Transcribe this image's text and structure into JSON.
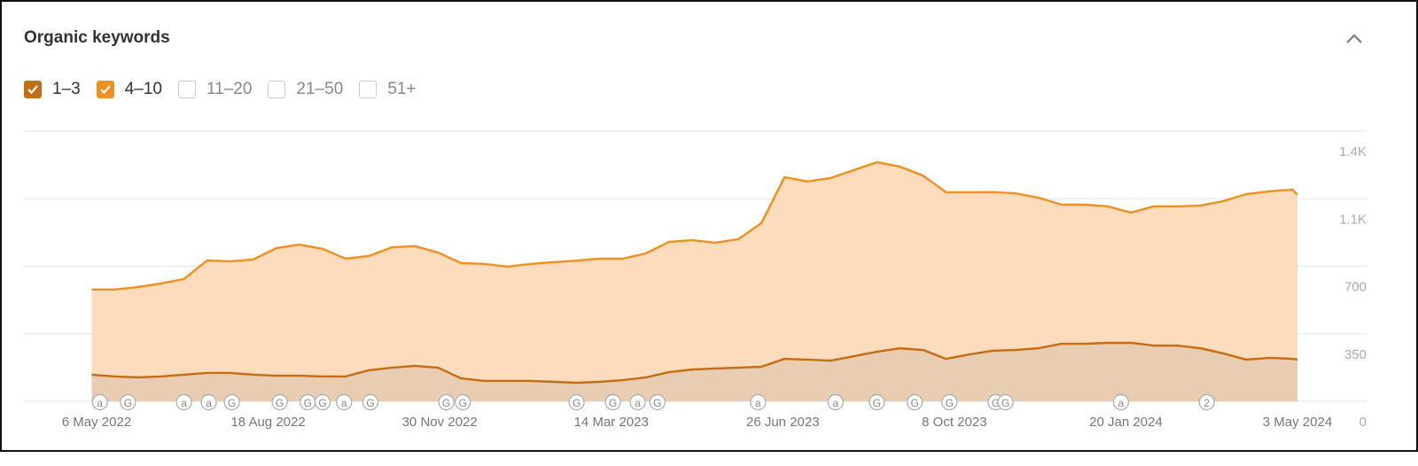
{
  "chart_data": {
    "type": "stacked-area",
    "title": "Organic keywords",
    "x": [
      "2022-05-03",
      "2022-05-17",
      "2022-05-31",
      "2022-06-14",
      "2022-06-28",
      "2022-07-12",
      "2022-07-26",
      "2022-08-09",
      "2022-08-23",
      "2022-09-06",
      "2022-09-20",
      "2022-10-04",
      "2022-10-18",
      "2022-11-01",
      "2022-11-15",
      "2022-11-29",
      "2022-12-13",
      "2022-12-27",
      "2023-01-10",
      "2023-01-24",
      "2023-02-07",
      "2023-02-21",
      "2023-03-07",
      "2023-03-21",
      "2023-04-04",
      "2023-04-18",
      "2023-05-02",
      "2023-05-16",
      "2023-05-30",
      "2023-06-13",
      "2023-06-27",
      "2023-07-11",
      "2023-07-25",
      "2023-08-08",
      "2023-08-22",
      "2023-09-05",
      "2023-09-19",
      "2023-10-03",
      "2023-10-17",
      "2023-10-31",
      "2023-11-14",
      "2023-11-28",
      "2023-12-12",
      "2023-12-26",
      "2024-01-09",
      "2024-01-23",
      "2024-02-06",
      "2024-02-20",
      "2024-03-05",
      "2024-03-19",
      "2024-04-02",
      "2024-04-16",
      "2024-04-30",
      "2024-05-03"
    ],
    "series": [
      {
        "name": "1–3",
        "checked": true,
        "color": "#c46d12",
        "fill": "#e8cdb3",
        "values": [
          138,
          129,
          124,
          129,
          138,
          147,
          147,
          138,
          133,
          133,
          129,
          129,
          161,
          174,
          184,
          174,
          119,
          106,
          106,
          106,
          101,
          96,
          101,
          110,
          124,
          151,
          165,
          170,
          174,
          179,
          220,
          216,
          211,
          234,
          257,
          275,
          266,
          220,
          243,
          262,
          266,
          275,
          298,
          298,
          303,
          303,
          289,
          289,
          275,
          248,
          216,
          225,
          220,
          216
        ]
      },
      {
        "name": "4–10",
        "checked": true,
        "color": "#f0901f",
        "fill": "#fddbbd",
        "values": [
          441,
          450,
          468,
          482,
          496,
          583,
          578,
          597,
          661,
          679,
          661,
          610,
          592,
          624,
          620,
          597,
          597,
          606,
          592,
          606,
          620,
          633,
          638,
          629,
          643,
          675,
          670,
          652,
          666,
          744,
          941,
          923,
          946,
          964,
          982,
          941,
          904,
          863,
          840,
          822,
          812,
          780,
          721,
          721,
          707,
          675,
          721,
          721,
          739,
          789,
          858,
          863,
          877,
          854
        ]
      },
      {
        "name": "11–20",
        "checked": false,
        "color": "#f4b35c"
      },
      {
        "name": "21–50",
        "checked": false,
        "color": "#f7cb8c"
      },
      {
        "name": "51+",
        "checked": false,
        "color": "#fae0bb"
      }
    ],
    "ylim": [
      0,
      1400
    ],
    "yticks": [
      0,
      350,
      700,
      {
        "value": 1050,
        "label": "1.1K"
      },
      {
        "value": 1400,
        "label": "1.4K"
      }
    ],
    "xlim": [
      "2022-05-06",
      "2024-05-03"
    ],
    "xticks": [
      {
        "value": "2022-05-06",
        "label": "6 May 2022"
      },
      {
        "value": "2022-08-18",
        "label": "18 Aug 2022"
      },
      {
        "value": "2022-11-30",
        "label": "30 Nov 2022"
      },
      {
        "value": "2023-03-14",
        "label": "14 Mar 2023"
      },
      {
        "value": "2023-06-26",
        "label": "26 Jun 2023"
      },
      {
        "value": "2023-10-08",
        "label": "8 Oct 2023"
      },
      {
        "value": "2024-01-20",
        "label": "20 Jan 2024"
      },
      {
        "value": "2024-05-03",
        "label": "3 May 2024"
      }
    ],
    "grid": true,
    "annotations": [
      {
        "x": "2022-05-08",
        "label": "a"
      },
      {
        "x": "2022-05-25",
        "label": "G"
      },
      {
        "x": "2022-06-28",
        "label": "a"
      },
      {
        "x": "2022-07-13",
        "label": "a"
      },
      {
        "x": "2022-07-27",
        "label": "G"
      },
      {
        "x": "2022-08-25",
        "label": "G"
      },
      {
        "x": "2022-09-11",
        "label": "G"
      },
      {
        "x": "2022-09-20",
        "label": "G"
      },
      {
        "x": "2022-10-03",
        "label": "a"
      },
      {
        "x": "2022-10-19",
        "label": "G"
      },
      {
        "x": "2022-12-04",
        "label": "G"
      },
      {
        "x": "2022-12-14",
        "label": "G"
      },
      {
        "x": "2023-02-21",
        "label": "G"
      },
      {
        "x": "2023-03-15",
        "label": "G"
      },
      {
        "x": "2023-03-30",
        "label": "a"
      },
      {
        "x": "2023-04-11",
        "label": "G"
      },
      {
        "x": "2023-06-11",
        "label": "a"
      },
      {
        "x": "2023-07-28",
        "label": "a"
      },
      {
        "x": "2023-08-22",
        "label": "G"
      },
      {
        "x": "2023-09-14",
        "label": "G"
      },
      {
        "x": "2023-10-05",
        "label": "G"
      },
      {
        "x": "2023-11-02",
        "label": "G"
      },
      {
        "x": "2023-11-08",
        "label": "G"
      },
      {
        "x": "2024-01-17",
        "label": "a"
      },
      {
        "x": "2024-03-09",
        "label": "2"
      }
    ]
  }
}
